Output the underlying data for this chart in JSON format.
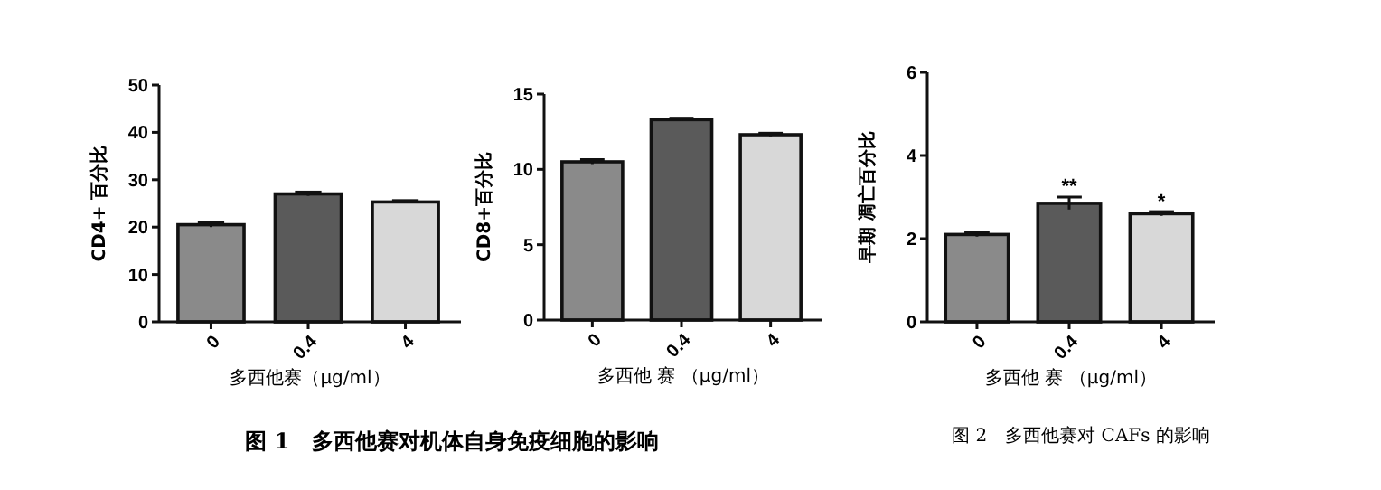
{
  "chart_data": [
    {
      "type": "bar",
      "categories": [
        "0",
        "0.4",
        "4"
      ],
      "values": [
        20.5,
        27,
        25.3
      ],
      "errors": [
        0.5,
        0.4,
        0.3
      ],
      "colors": [
        "#8a8a8a",
        "#5a5a5a",
        "#d8d8d8"
      ],
      "ylim": [
        0,
        50
      ],
      "yticks": [
        0,
        10,
        20,
        30,
        40,
        50
      ],
      "ylabel": "CD4+ 百分比",
      "xlabel": "多西他赛（μg/ml）",
      "annotations": [
        "图 1　多西他赛对机体自身免疫细胞的影响"
      ]
    },
    {
      "type": "bar",
      "categories": [
        "0",
        "0.4",
        "4"
      ],
      "values": [
        10.5,
        13.3,
        12.3
      ],
      "errors": [
        0.15,
        0.1,
        0.1
      ],
      "colors": [
        "#8a8a8a",
        "#5a5a5a",
        "#d8d8d8"
      ],
      "ylim": [
        0,
        15
      ],
      "yticks": [
        0,
        5,
        10,
        15
      ],
      "ylabel": "CD8+百分比",
      "xlabel": "多西他 赛 （μg/ml）"
    },
    {
      "type": "bar",
      "categories": [
        "0",
        "0.4",
        "4"
      ],
      "values": [
        2.1,
        2.85,
        2.6
      ],
      "errors": [
        0.05,
        0.15,
        0.05
      ],
      "colors": [
        "#8a8a8a",
        "#5a5a5a",
        "#d8d8d8"
      ],
      "ylim": [
        0,
        6
      ],
      "yticks": [
        0,
        2,
        4,
        6
      ],
      "ylabel": "早期 凋亡百分比",
      "xlabel": "多西他 赛 （μg/ml）",
      "annotations": [
        {
          "text": "**",
          "x": "0.4",
          "y": 3.1
        },
        {
          "text": "*",
          "x": "4",
          "y": 2.75
        },
        "图 2　多西他赛对 CAFs 的影响"
      ]
    }
  ]
}
